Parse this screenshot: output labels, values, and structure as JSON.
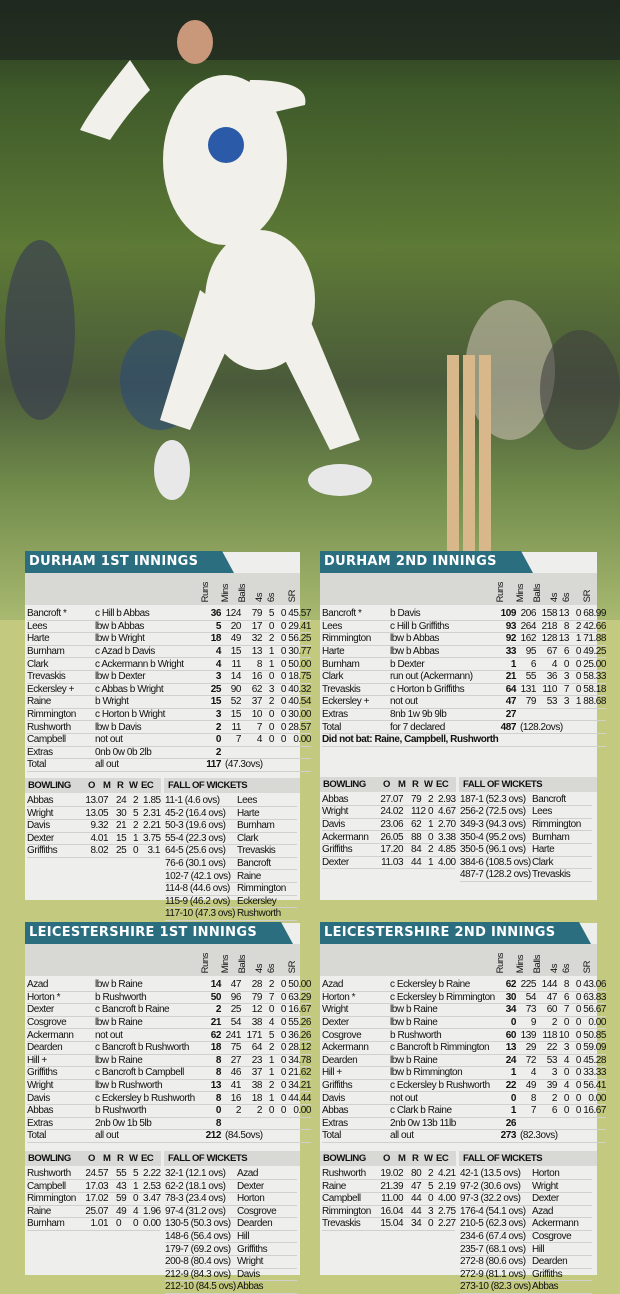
{
  "colors": {
    "tab": "#2b6e80",
    "background": "#c3c97e",
    "panel": "#eeeeec",
    "header_band": "#d8d9d5"
  },
  "photo": {
    "subject": "cricket bowler in delivery stride with stumps"
  },
  "headers": {
    "runs": "Runs",
    "mins": "Mins",
    "balls": "Balls",
    "fours": "4s",
    "sixes": "6s",
    "sr": "SR",
    "bowling": "BOWLING",
    "o": "O",
    "m": "M",
    "r": "R",
    "w": "W",
    "ec": "EC",
    "fow": "FALL OF WICKETS"
  },
  "innings": [
    {
      "title": "DURHAM 1ST INNINGS",
      "batting": [
        [
          "Bancroft *",
          "c Hill b Abbas",
          "36",
          "124",
          "79",
          "5",
          "0",
          "45.57"
        ],
        [
          "Lees",
          "lbw b Abbas",
          "5",
          "20",
          "17",
          "0",
          "0",
          "29.41"
        ],
        [
          "Harte",
          "lbw b Wright",
          "18",
          "49",
          "32",
          "2",
          "0",
          "56.25"
        ],
        [
          "Burnham",
          "c Azad b Davis",
          "4",
          "15",
          "13",
          "1",
          "0",
          "30.77"
        ],
        [
          "Clark",
          "c Ackermann b Wright",
          "4",
          "11",
          "8",
          "1",
          "0",
          "50.00"
        ],
        [
          "Trevaskis",
          "lbw b Dexter",
          "3",
          "14",
          "16",
          "0",
          "0",
          "18.75"
        ],
        [
          "Eckersley +",
          "c Abbas b Wright",
          "25",
          "90",
          "62",
          "3",
          "0",
          "40.32"
        ],
        [
          "Raine",
          "b Wright",
          "15",
          "52",
          "37",
          "2",
          "0",
          "40.54"
        ],
        [
          "Rimmington",
          "c Horton b Wright",
          "3",
          "15",
          "10",
          "0",
          "0",
          "30.00"
        ],
        [
          "Rushworth",
          "lbw b Davis",
          "2",
          "11",
          "7",
          "0",
          "0",
          "28.57"
        ],
        [
          "Campbell",
          "not out",
          "0",
          "7",
          "4",
          "0",
          "0",
          "0.00"
        ]
      ],
      "extras": [
        "Extras",
        "0nb 0w 0b 2lb",
        "2"
      ],
      "total": [
        "Total",
        "all out",
        "117",
        "(47.3ovs)"
      ],
      "did_not_bat": "",
      "bowling": [
        [
          "Abbas",
          "13.0",
          "7",
          "24",
          "2",
          "1.85"
        ],
        [
          "Wright",
          "13.0",
          "5",
          "30",
          "5",
          "2.31"
        ],
        [
          "Davis",
          "9.3",
          "2",
          "21",
          "2",
          "2.21"
        ],
        [
          "Dexter",
          "4.0",
          "1",
          "15",
          "1",
          "3.75"
        ],
        [
          "Griffiths",
          "8.0",
          "2",
          "25",
          "0",
          "3.1"
        ]
      ],
      "fow": [
        [
          "11-1 (4.6 ovs)",
          "Lees"
        ],
        [
          "45-2 (16.4 ovs)",
          "Harte"
        ],
        [
          "50-3 (19.6 ovs)",
          "Burnham"
        ],
        [
          "55-4 (22.3 ovs)",
          "Clark"
        ],
        [
          "64-5 (25.6 ovs)",
          "Trevaskis"
        ],
        [
          "76-6 (30.1 ovs)",
          "Bancroft"
        ],
        [
          "102-7 (42.1 ovs)",
          "Raine"
        ],
        [
          "114-8 (44.6 ovs)",
          "Rimmington"
        ],
        [
          "115-9 (46.2 ovs)",
          "Eckersley"
        ],
        [
          "117-10 (47.3 ovs)",
          "Rushworth"
        ]
      ]
    },
    {
      "title": "DURHAM 2ND INNINGS",
      "batting": [
        [
          "Bancroft *",
          "b Davis",
          "109",
          "206",
          "158",
          "13",
          "0",
          "68.99"
        ],
        [
          "Lees",
          "c Hill b Griffiths",
          "93",
          "264",
          "218",
          "8",
          "2",
          "42.66"
        ],
        [
          "Rimmington",
          "lbw b Abbas",
          "92",
          "162",
          "128",
          "13",
          "1",
          "71.88"
        ],
        [
          "Harte",
          "lbw b Abbas",
          "33",
          "95",
          "67",
          "6",
          "0",
          "49.25"
        ],
        [
          "Burnham",
          "b Dexter",
          "1",
          "6",
          "4",
          "0",
          "0",
          "25.00"
        ],
        [
          "Clark",
          "run out (Ackermann)",
          "21",
          "55",
          "36",
          "3",
          "0",
          "58.33"
        ],
        [
          "Trevaskis",
          "c Horton b Griffiths",
          "64",
          "131",
          "110",
          "7",
          "0",
          "58.18"
        ],
        [
          "Eckersley +",
          "not out",
          "47",
          "79",
          "53",
          "3",
          "1",
          "88.68"
        ]
      ],
      "extras": [
        "Extras",
        "8nb 1w 9b 9lb",
        "27"
      ],
      "total": [
        "Total",
        "for 7 declared",
        "487",
        "(128.2ovs)"
      ],
      "did_not_bat": "Did not bat: Raine, Campbell, Rushworth",
      "bowling": [
        [
          "Abbas",
          "27.0",
          "7",
          "79",
          "2",
          "2.93"
        ],
        [
          "Wright",
          "24.0",
          "2",
          "112",
          "0",
          "4.67"
        ],
        [
          "Davis",
          "23.0",
          "6",
          "62",
          "1",
          "2.70"
        ],
        [
          "Ackermann",
          "26.0",
          "5",
          "88",
          "0",
          "3.38"
        ],
        [
          "Griffiths",
          "17.2",
          "0",
          "84",
          "2",
          "4.85"
        ],
        [
          "Dexter",
          "11.0",
          "3",
          "44",
          "1",
          "4.00"
        ]
      ],
      "fow": [
        [
          "187-1 (52.3 ovs)",
          "Bancroft"
        ],
        [
          "256-2 (72.5 ovs)",
          "Lees"
        ],
        [
          "349-3 (94.3 ovs)",
          "Rimmington"
        ],
        [
          "350-4 (95.2 ovs)",
          "Burnham"
        ],
        [
          "350-5 (96.1 ovs)",
          "Harte"
        ],
        [
          "384-6 (108.5 ovs)",
          "Clark"
        ],
        [
          "487-7 (128.2 ovs)",
          "Trevaskis"
        ]
      ]
    },
    {
      "title": "LEICESTERSHIRE 1ST INNINGS",
      "batting": [
        [
          "Azad",
          "lbw b Raine",
          "14",
          "47",
          "28",
          "2",
          "0",
          "50.00"
        ],
        [
          "Horton *",
          "b Rushworth",
          "50",
          "96",
          "79",
          "7",
          "0",
          "63.29"
        ],
        [
          "Dexter",
          "c Bancroft b Raine",
          "2",
          "25",
          "12",
          "0",
          "0",
          "16.67"
        ],
        [
          "Cosgrove",
          "lbw b Raine",
          "21",
          "54",
          "38",
          "4",
          "0",
          "55.26"
        ],
        [
          "Ackermann",
          "not out",
          "62",
          "241",
          "171",
          "5",
          "0",
          "36.26"
        ],
        [
          "Dearden",
          "c Bancroft b Rushworth",
          "18",
          "75",
          "64",
          "2",
          "0",
          "28.12"
        ],
        [
          "Hill +",
          "lbw b Raine",
          "8",
          "27",
          "23",
          "1",
          "0",
          "34.78"
        ],
        [
          "Griffiths",
          "c Bancroft b Campbell",
          "8",
          "46",
          "37",
          "1",
          "0",
          "21.62"
        ],
        [
          "Wright",
          "lbw b Rushworth",
          "13",
          "41",
          "38",
          "2",
          "0",
          "34.21"
        ],
        [
          "Davis",
          "c Eckersley b Rushworth",
          "8",
          "16",
          "18",
          "1",
          "0",
          "44.44"
        ],
        [
          "Abbas",
          "b Rushworth",
          "0",
          "2",
          "2",
          "0",
          "0",
          "0.00"
        ]
      ],
      "extras": [
        "Extras",
        "2nb 0w 1b 5lb",
        "8"
      ],
      "total": [
        "Total",
        "all out",
        "212",
        "(84.5ovs)"
      ],
      "did_not_bat": "",
      "bowling": [
        [
          "Rushworth",
          "24.5",
          "7",
          "55",
          "5",
          "2.22"
        ],
        [
          "Campbell",
          "17.0",
          "3",
          "43",
          "1",
          "2.53"
        ],
        [
          "Rimmington",
          "17.0",
          "2",
          "59",
          "0",
          "3.47"
        ],
        [
          "Raine",
          "25.0",
          "7",
          "49",
          "4",
          "1.96"
        ],
        [
          "Burnham",
          "1.0",
          "1",
          "0",
          "0",
          "0.00"
        ]
      ],
      "fow": [
        [
          "32-1 (12.1 ovs)",
          "Azad"
        ],
        [
          "62-2 (18.1 ovs)",
          "Dexter"
        ],
        [
          "78-3 (23.4 ovs)",
          "Horton"
        ],
        [
          "97-4 (31.2 ovs)",
          "Cosgrove"
        ],
        [
          "130-5 (50.3 ovs)",
          "Dearden"
        ],
        [
          "148-6 (56.4 ovs)",
          "Hill"
        ],
        [
          "179-7 (69.2 ovs)",
          "Griffiths"
        ],
        [
          "200-8 (80.4 ovs)",
          "Wright"
        ],
        [
          "212-9 (84.3 ovs)",
          "Davis"
        ],
        [
          "212-10 (84.5 ovs)",
          "Abbas"
        ]
      ]
    },
    {
      "title": "LEICESTERSHIRE 2ND INNINGS",
      "batting": [
        [
          "Azad",
          "c Eckersley b Raine",
          "62",
          "225",
          "144",
          "8",
          "0",
          "43.06"
        ],
        [
          "Horton *",
          "c Eckersley b Rimmington",
          "30",
          "54",
          "47",
          "6",
          "0",
          "63.83"
        ],
        [
          "Wright",
          "lbw b Raine",
          "34",
          "73",
          "60",
          "7",
          "0",
          "56.67"
        ],
        [
          "Dexter",
          "lbw b Raine",
          "0",
          "9",
          "2",
          "0",
          "0",
          "0.00"
        ],
        [
          "Cosgrove",
          "b Rushworth",
          "60",
          "139",
          "118",
          "10",
          "0",
          "50.85"
        ],
        [
          "Ackermann",
          "c Bancroft b Rimmington",
          "13",
          "29",
          "22",
          "3",
          "0",
          "59.09"
        ],
        [
          "Dearden",
          "lbw b Raine",
          "24",
          "72",
          "53",
          "4",
          "0",
          "45.28"
        ],
        [
          "Hill +",
          "lbw b Rimmington",
          "1",
          "4",
          "3",
          "0",
          "0",
          "33.33"
        ],
        [
          "Griffiths",
          "c Eckersley b Rushworth",
          "22",
          "49",
          "39",
          "4",
          "0",
          "56.41"
        ],
        [
          "Davis",
          "not out",
          "0",
          "8",
          "2",
          "0",
          "0",
          "0.00"
        ],
        [
          "Abbas",
          "c Clark b Raine",
          "1",
          "7",
          "6",
          "0",
          "0",
          "16.67"
        ]
      ],
      "extras": [
        "Extras",
        "2nb 0w 13b 11lb",
        "26"
      ],
      "total": [
        "Total",
        "all out",
        "273",
        "(82.3ovs)"
      ],
      "did_not_bat": "",
      "bowling": [
        [
          "Rushworth",
          "19.0",
          "2",
          "80",
          "2",
          "4.21"
        ],
        [
          "Raine",
          "21.3",
          "9",
          "47",
          "5",
          "2.19"
        ],
        [
          "Campbell",
          "11.0",
          "0",
          "44",
          "0",
          "4.00"
        ],
        [
          "Rimmington",
          "16.0",
          "4",
          "44",
          "3",
          "2.75"
        ],
        [
          "Trevaskis",
          "15.0",
          "4",
          "34",
          "0",
          "2.27"
        ]
      ],
      "fow": [
        [
          "42-1 (13.5 ovs)",
          "Horton"
        ],
        [
          "97-2 (30.6 ovs)",
          "Wright"
        ],
        [
          "97-3 (32.2 ovs)",
          "Dexter"
        ],
        [
          "176-4 (54.1 ovs)",
          "Azad"
        ],
        [
          "210-5 (62.3 ovs)",
          "Ackermann"
        ],
        [
          "234-6 (67.4 ovs)",
          "Cosgrove"
        ],
        [
          "235-7 (68.1 ovs)",
          "Hill"
        ],
        [
          "272-8 (80.6 ovs)",
          "Dearden"
        ],
        [
          "272-9 (81.1 ovs)",
          "Griffiths"
        ],
        [
          "273-10 (82.3 ovs)",
          "Abbas"
        ]
      ]
    }
  ]
}
